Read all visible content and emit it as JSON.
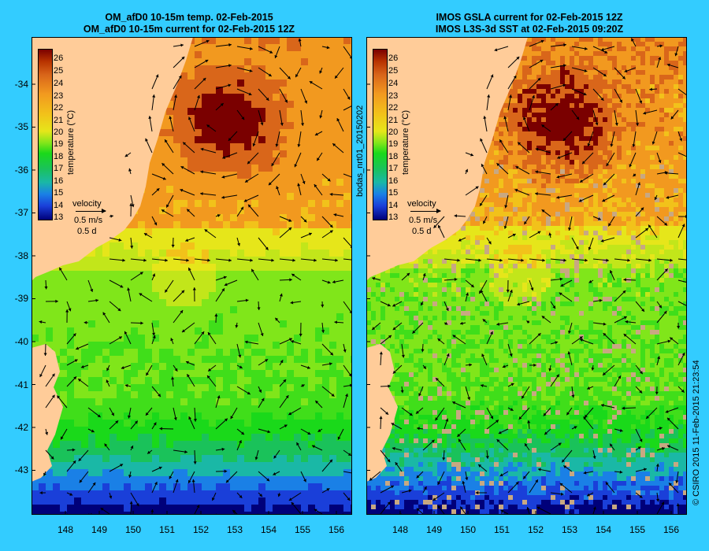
{
  "left_panel": {
    "title_line1": "OM_afD0 10-15m temp. 02-Feb-2015",
    "title_line2": "OM_afD0 10-15m current for 02-Feb-2015 12Z"
  },
  "right_panel": {
    "title_line1": "IMOS GSLA current for 02-Feb-2015 12Z",
    "title_line2": "IMOS L3S-3d SST at 02-Feb-2015 09:20Z"
  },
  "latitude_labels": [
    "-34",
    "-35",
    "-36",
    "-37",
    "-38",
    "-39",
    "-40",
    "-41",
    "-42",
    "-43"
  ],
  "longitude_labels": [
    "148",
    "149",
    "150",
    "151",
    "152",
    "153",
    "154",
    "155",
    "156"
  ],
  "colorbar": {
    "ticks": [
      "26",
      "25",
      "24",
      "23",
      "22",
      "21",
      "20",
      "19",
      "18",
      "17",
      "16",
      "15",
      "14",
      "13"
    ],
    "label": "temperature (°C)"
  },
  "velocity_legend": {
    "title": "velocity",
    "speed": "0.5 m/s",
    "duration": "0.5 d"
  },
  "middle_vertical_text": "bodas_nrt01_20150202",
  "copyright_text": "© CSIRO 2015   11-Feb-2015 21:23:54",
  "colors": {
    "background": "#33ccff",
    "land": "#ffcc99",
    "no_data": "#c8a882",
    "arrow": "#000000"
  },
  "map_extent": {
    "lon_range": [
      147.1,
      156.5
    ],
    "lat_range": [
      -43.9,
      -33.3
    ]
  }
}
